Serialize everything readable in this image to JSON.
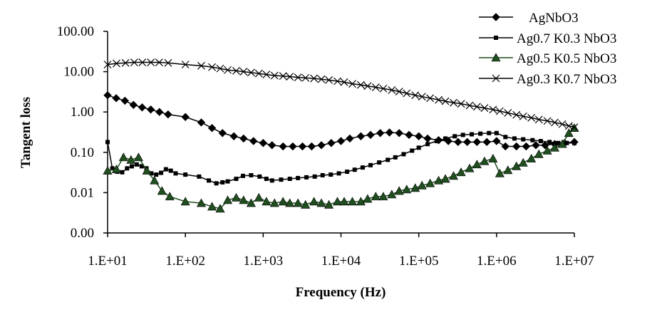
{
  "chart_data": {
    "type": "line",
    "title": "",
    "xlabel": "Frequency (Hz)",
    "ylabel": "Tangent loss",
    "x_scale": "log",
    "y_scale": "log",
    "xlim": [
      10,
      10000000
    ],
    "ylim": [
      0.001,
      100
    ],
    "x_tick_labels": [
      "1.E+01",
      "1.E+02",
      "1.E+03",
      "1.E+04",
      "1.E+05",
      "1.E+06",
      "1.E+07"
    ],
    "x_tick_values": [
      10,
      100,
      1000,
      10000,
      100000,
      1000000,
      10000000
    ],
    "y_tick_labels": [
      "100.00",
      "10.00",
      "1.00",
      "0.10",
      "0.01",
      "0.00"
    ],
    "y_tick_values": [
      100,
      10,
      1,
      0.1,
      0.01,
      0.001
    ],
    "grid": false,
    "legend_position": "top-right",
    "series": [
      {
        "name": "AgNbO3",
        "color": "#000000",
        "marker": "diamond",
        "x": [
          10,
          12.9,
          16.7,
          21.5,
          27.8,
          35.9,
          46.4,
          59.9,
          100,
          160,
          220,
          300,
          420,
          560,
          750,
          1000,
          1300,
          1800,
          2400,
          3200,
          4200,
          5600,
          7500,
          10000,
          13000,
          18000,
          24000,
          32000,
          42000,
          56000,
          75000,
          100000,
          130000,
          180000,
          240000,
          320000,
          420000,
          560000,
          750000,
          1000000,
          1300000,
          1800000,
          2400000,
          3200000,
          4200000,
          5600000,
          7500000,
          10000000
        ],
        "y": [
          2.6,
          2.2,
          1.9,
          1.5,
          1.3,
          1.15,
          1.0,
          0.87,
          0.75,
          0.55,
          0.4,
          0.3,
          0.25,
          0.22,
          0.19,
          0.17,
          0.15,
          0.14,
          0.14,
          0.14,
          0.14,
          0.15,
          0.17,
          0.19,
          0.22,
          0.25,
          0.27,
          0.3,
          0.31,
          0.3,
          0.27,
          0.25,
          0.22,
          0.2,
          0.19,
          0.18,
          0.18,
          0.18,
          0.18,
          0.19,
          0.14,
          0.14,
          0.14,
          0.15,
          0.15,
          0.16,
          0.17,
          0.18
        ]
      },
      {
        "name": "Ag0.7 K0.3 NbO3",
        "color": "#000000",
        "marker": "square",
        "x": [
          10,
          11.5,
          13.3,
          15.4,
          17.8,
          20.5,
          23.7,
          27.4,
          31.6,
          36.5,
          42.2,
          48.7,
          56.2,
          64.9,
          75,
          100,
          150,
          200,
          250,
          300,
          350,
          450,
          550,
          700,
          900,
          1100,
          1300,
          1700,
          2200,
          2800,
          3600,
          4600,
          5800,
          7400,
          9400,
          12000,
          15000,
          19000,
          24000,
          31000,
          40000,
          50000,
          64000,
          82000,
          100000,
          130000,
          170000,
          220000,
          290000,
          370000,
          480000,
          620000,
          800000,
          1000000,
          1300000,
          1700000,
          2200000,
          2900000,
          3700000,
          4800000,
          6200000,
          8000000,
          10000000
        ],
        "y": [
          0.18,
          0.04,
          0.033,
          0.032,
          0.04,
          0.045,
          0.05,
          0.045,
          0.04,
          0.03,
          0.028,
          0.031,
          0.038,
          0.035,
          0.03,
          0.028,
          0.025,
          0.02,
          0.017,
          0.018,
          0.019,
          0.022,
          0.026,
          0.027,
          0.025,
          0.022,
          0.02,
          0.021,
          0.022,
          0.023,
          0.024,
          0.025,
          0.027,
          0.028,
          0.03,
          0.033,
          0.037,
          0.042,
          0.048,
          0.056,
          0.065,
          0.075,
          0.09,
          0.11,
          0.13,
          0.16,
          0.19,
          0.22,
          0.25,
          0.27,
          0.28,
          0.29,
          0.3,
          0.3,
          0.24,
          0.22,
          0.21,
          0.2,
          0.19,
          0.18,
          0.17,
          0.17,
          0.17
        ]
      },
      {
        "name": "Ag0.5 K0.5 NbO3",
        "color": "#1f4e1f",
        "marker": "triangle",
        "x": [
          10,
          13,
          16,
          20,
          25,
          32,
          40,
          50,
          63,
          100,
          160,
          220,
          280,
          350,
          450,
          560,
          700,
          880,
          1100,
          1400,
          1800,
          2200,
          2800,
          3500,
          4500,
          5600,
          7000,
          9000,
          11000,
          14000,
          18000,
          22000,
          28000,
          35000,
          45000,
          56000,
          70000,
          90000,
          110000,
          140000,
          180000,
          220000,
          280000,
          350000,
          450000,
          560000,
          700000,
          900000,
          1100000,
          1400000,
          1800000,
          2200000,
          2800000,
          3500000,
          4500000,
          5600000,
          7000000,
          8500000,
          10000000
        ],
        "y": [
          0.035,
          0.038,
          0.075,
          0.065,
          0.075,
          0.035,
          0.02,
          0.011,
          0.008,
          0.006,
          0.0055,
          0.0045,
          0.004,
          0.0065,
          0.0075,
          0.0065,
          0.0055,
          0.0075,
          0.006,
          0.0055,
          0.006,
          0.0055,
          0.0055,
          0.005,
          0.006,
          0.0055,
          0.005,
          0.006,
          0.006,
          0.006,
          0.006,
          0.007,
          0.008,
          0.008,
          0.009,
          0.011,
          0.012,
          0.013,
          0.015,
          0.017,
          0.02,
          0.022,
          0.026,
          0.032,
          0.04,
          0.05,
          0.06,
          0.07,
          0.03,
          0.036,
          0.045,
          0.055,
          0.07,
          0.09,
          0.11,
          0.13,
          0.16,
          0.3,
          0.4
        ]
      },
      {
        "name": "Ag0.3 K0.7 NbO3",
        "color": "#000000",
        "marker": "x",
        "x": [
          10,
          13,
          17,
          22,
          28,
          36,
          46,
          60,
          100,
          160,
          220,
          280,
          350,
          450,
          560,
          700,
          880,
          1100,
          1400,
          1800,
          2200,
          2800,
          3500,
          4500,
          5600,
          7000,
          9000,
          11000,
          14000,
          18000,
          22000,
          28000,
          35000,
          45000,
          56000,
          70000,
          90000,
          110000,
          140000,
          180000,
          220000,
          280000,
          350000,
          450000,
          560000,
          700000,
          900000,
          1100000,
          1400000,
          1800000,
          2200000,
          2800000,
          3500000,
          4500000,
          5600000,
          7000000,
          8500000,
          10000000
        ],
        "y": [
          15,
          16,
          16.5,
          17,
          17,
          17,
          17,
          16.5,
          15,
          14,
          13,
          12,
          11,
          10.5,
          10,
          9.5,
          9,
          8.5,
          8,
          7.8,
          7.5,
          7.2,
          7,
          6.8,
          6.5,
          6.2,
          5.8,
          5.5,
          5,
          4.7,
          4.4,
          4.1,
          3.8,
          3.5,
          3.2,
          2.9,
          2.6,
          2.4,
          2.2,
          2.0,
          1.85,
          1.7,
          1.6,
          1.45,
          1.35,
          1.25,
          1.15,
          1.05,
          0.95,
          0.85,
          0.78,
          0.72,
          0.65,
          0.6,
          0.55,
          0.5,
          0.45,
          0.42
        ]
      }
    ]
  }
}
